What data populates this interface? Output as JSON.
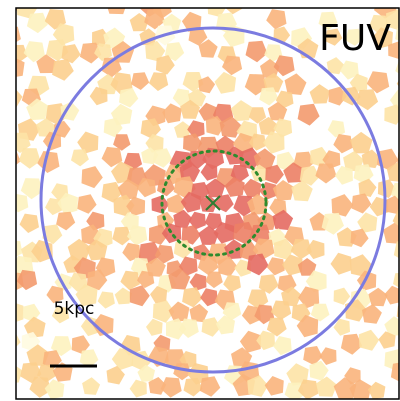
{
  "image": {
    "band": "FUV",
    "scale_bar_label": "5kpc"
  }
}
